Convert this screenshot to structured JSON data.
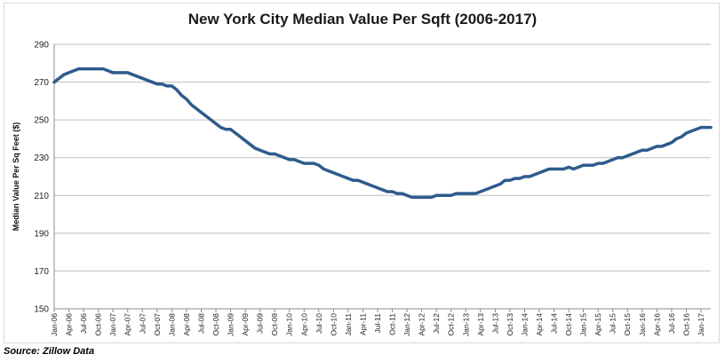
{
  "chart_data": {
    "type": "line",
    "title": "New York City Median Value Per Sqft (2006-2017)",
    "xlabel": "",
    "ylabel": "Median Value Per Sq Feet ($)",
    "ylim": [
      150,
      290
    ],
    "yticks": [
      150,
      170,
      190,
      210,
      230,
      250,
      270,
      290
    ],
    "grid": "horizontal",
    "legend": "none",
    "x_tick_labels": [
      "Jan-06",
      "Apr-06",
      "Jul-06",
      "Oct-06",
      "Jan-07",
      "Apr-07",
      "Jul-07",
      "Oct-07",
      "Jan-08",
      "Apr-08",
      "Jul-08",
      "Oct-08",
      "Jan-09",
      "Apr-09",
      "Jul-09",
      "Oct-09",
      "Jan-10",
      "Apr-10",
      "Jul-10",
      "Oct-10",
      "Jan-11",
      "Apr-11",
      "Jul-11",
      "Oct-11",
      "Jan-12",
      "Apr-12",
      "Jul-12",
      "Oct-12",
      "Jan-13",
      "Apr-13",
      "Jul-13",
      "Oct-13",
      "Jan-14",
      "Apr-14",
      "Jul-14",
      "Oct-14",
      "Jan-15",
      "Apr-15",
      "Jul-15",
      "Oct-15",
      "Jan-16",
      "Apr-16",
      "Jul-16",
      "Oct-16",
      "Jan-17"
    ],
    "series": [
      {
        "color": "#2e5b8c",
        "x": [
          "Jan-06",
          "Feb-06",
          "Mar-06",
          "Apr-06",
          "May-06",
          "Jun-06",
          "Jul-06",
          "Aug-06",
          "Sep-06",
          "Oct-06",
          "Nov-06",
          "Dec-06",
          "Jan-07",
          "Feb-07",
          "Mar-07",
          "Apr-07",
          "May-07",
          "Jun-07",
          "Jul-07",
          "Aug-07",
          "Sep-07",
          "Oct-07",
          "Nov-07",
          "Dec-07",
          "Jan-08",
          "Feb-08",
          "Mar-08",
          "Apr-08",
          "May-08",
          "Jun-08",
          "Jul-08",
          "Aug-08",
          "Sep-08",
          "Oct-08",
          "Nov-08",
          "Dec-08",
          "Jan-09",
          "Feb-09",
          "Mar-09",
          "Apr-09",
          "May-09",
          "Jun-09",
          "Jul-09",
          "Aug-09",
          "Sep-09",
          "Oct-09",
          "Nov-09",
          "Dec-09",
          "Jan-10",
          "Feb-10",
          "Mar-10",
          "Apr-10",
          "May-10",
          "Jun-10",
          "Jul-10",
          "Aug-10",
          "Sep-10",
          "Oct-10",
          "Nov-10",
          "Dec-10",
          "Jan-11",
          "Feb-11",
          "Mar-11",
          "Apr-11",
          "May-11",
          "Jun-11",
          "Jul-11",
          "Aug-11",
          "Sep-11",
          "Oct-11",
          "Nov-11",
          "Dec-11",
          "Jan-12",
          "Feb-12",
          "Mar-12",
          "Apr-12",
          "May-12",
          "Jun-12",
          "Jul-12",
          "Aug-12",
          "Sep-12",
          "Oct-12",
          "Nov-12",
          "Dec-12",
          "Jan-13",
          "Feb-13",
          "Mar-13",
          "Apr-13",
          "May-13",
          "Jun-13",
          "Jul-13",
          "Aug-13",
          "Sep-13",
          "Oct-13",
          "Nov-13",
          "Dec-13",
          "Jan-14",
          "Feb-14",
          "Mar-14",
          "Apr-14",
          "May-14",
          "Jun-14",
          "Jul-14",
          "Aug-14",
          "Sep-14",
          "Oct-14",
          "Nov-14",
          "Dec-14",
          "Jan-15",
          "Feb-15",
          "Mar-15",
          "Apr-15",
          "May-15",
          "Jun-15",
          "Jul-15",
          "Aug-15",
          "Sep-15",
          "Oct-15",
          "Nov-15",
          "Dec-15",
          "Jan-16",
          "Feb-16",
          "Mar-16",
          "Apr-16",
          "May-16",
          "Jun-16",
          "Jul-16",
          "Aug-16",
          "Sep-16",
          "Oct-16",
          "Nov-16",
          "Dec-16",
          "Jan-17",
          "Feb-17",
          "Mar-17"
        ],
        "values": [
          270,
          272,
          274,
          275,
          276,
          277,
          277,
          277,
          277,
          277,
          277,
          276,
          275,
          275,
          275,
          275,
          274,
          273,
          272,
          271,
          270,
          269,
          269,
          268,
          268,
          266,
          263,
          261,
          258,
          256,
          254,
          252,
          250,
          248,
          246,
          245,
          245,
          243,
          241,
          239,
          237,
          235,
          234,
          233,
          232,
          232,
          231,
          230,
          229,
          229,
          228,
          227,
          227,
          227,
          226,
          224,
          223,
          222,
          221,
          220,
          219,
          218,
          218,
          217,
          216,
          215,
          214,
          213,
          212,
          212,
          211,
          211,
          210,
          209,
          209,
          209,
          209,
          209,
          210,
          210,
          210,
          210,
          211,
          211,
          211,
          211,
          211,
          212,
          213,
          214,
          215,
          216,
          218,
          218,
          219,
          219,
          220,
          220,
          221,
          222,
          223,
          224,
          224,
          224,
          224,
          225,
          224,
          225,
          226,
          226,
          226,
          227,
          227,
          228,
          229,
          230,
          230,
          231,
          232,
          233,
          234,
          234,
          235,
          236,
          236,
          237,
          238,
          240,
          241,
          243,
          244,
          245,
          246,
          246,
          246
        ]
      }
    ]
  },
  "footer": {
    "source": "Source: Zillow Data"
  }
}
